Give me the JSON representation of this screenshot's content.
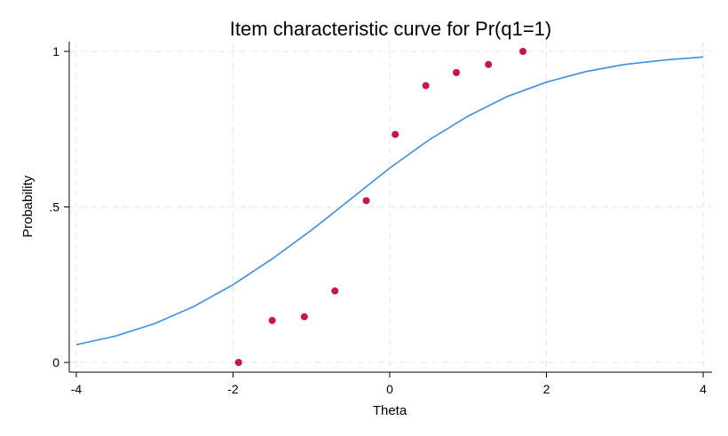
{
  "chart_data": {
    "type": "scatter",
    "title": "Item characteristic curve for Pr(q1=1)",
    "xlabel": "Theta",
    "ylabel": "Probability",
    "xlim": [
      -4,
      4
    ],
    "ylim": [
      0,
      1
    ],
    "x_ticks": [
      -4,
      -2,
      0,
      2,
      4
    ],
    "x_tick_labels": [
      "-4",
      "-2",
      "0",
      "2",
      "4"
    ],
    "y_ticks": [
      0,
      0.5,
      1
    ],
    "y_tick_labels": [
      "0",
      ".5",
      "1"
    ],
    "grid": true,
    "colors": {
      "curve": "#3a8ee6",
      "points": "#c8144f",
      "grid": "#e6e6e6"
    },
    "series": [
      {
        "type": "line",
        "x": [
          -4.0,
          -3.5,
          -3.0,
          -2.5,
          -2.0,
          -1.5,
          -1.0,
          -0.5,
          0.0,
          0.5,
          1.0,
          1.5,
          2.0,
          2.5,
          3.0,
          3.5,
          4.0
        ],
        "y": [
          0.057,
          0.085,
          0.125,
          0.18,
          0.25,
          0.333,
          0.425,
          0.525,
          0.625,
          0.715,
          0.792,
          0.855,
          0.901,
          0.935,
          0.958,
          0.972,
          0.982
        ]
      },
      {
        "type": "scatter",
        "x": [
          -1.93,
          -1.5,
          -1.09,
          -0.7,
          -0.3,
          0.07,
          0.46,
          0.85,
          1.26,
          1.7
        ],
        "y": [
          0.0,
          0.135,
          0.147,
          0.23,
          0.52,
          0.733,
          0.89,
          0.932,
          0.958,
          1.0
        ]
      }
    ]
  }
}
